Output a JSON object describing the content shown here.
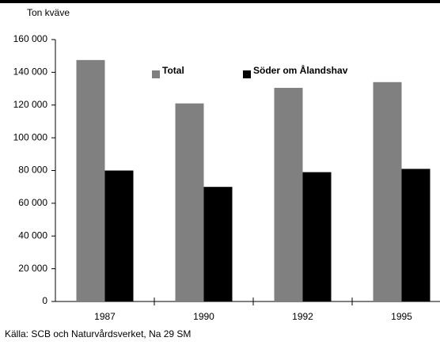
{
  "chart_data": {
    "type": "bar",
    "y_axis_label": "Ton kväve",
    "categories": [
      "1987",
      "1990",
      "1992",
      "1995"
    ],
    "series": [
      {
        "name": "Total",
        "color": "#808080",
        "values": [
          147500,
          121000,
          130500,
          134000
        ]
      },
      {
        "name": "Söder om Ålandshav",
        "color": "#000000",
        "values": [
          80000,
          70000,
          79000,
          81000
        ]
      }
    ],
    "ylim": [
      0,
      160000
    ],
    "yticks": [
      0,
      {
        "value": 20000,
        "label": "20 000"
      },
      {
        "value": 40000,
        "label": "40 000"
      },
      {
        "value": 60000,
        "label": "60 000"
      },
      {
        "value": 80000,
        "label": "80 000"
      },
      {
        "value": 100000,
        "label": "100 000"
      },
      {
        "value": 120000,
        "label": "120 000"
      },
      {
        "value": 140000,
        "label": "140 000"
      },
      {
        "value": 160000,
        "label": "160 000"
      }
    ],
    "grid": false,
    "source": "Källa: SCB och Naturvårdsverket, Na 29 SM"
  }
}
